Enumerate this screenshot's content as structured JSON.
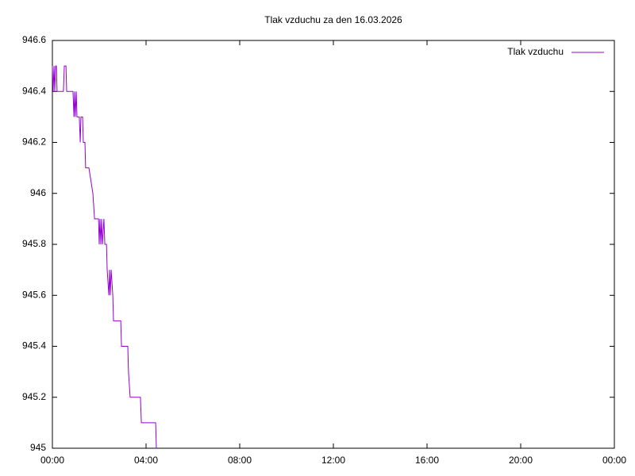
{
  "chart_data": {
    "type": "line",
    "title": "Tlak vzduchu za den 16.03.2026",
    "x": [
      0,
      0.03,
      0.07,
      0.1,
      0.14,
      0.17,
      0.2,
      0.47,
      0.51,
      0.58,
      0.61,
      0.88,
      0.92,
      0.95,
      0.98,
      1.02,
      1.05,
      1.15,
      1.19,
      1.22,
      1.29,
      1.32,
      1.39,
      1.42,
      1.56,
      1.73,
      1.8,
      1.97,
      2.0,
      2.03,
      2.07,
      2.1,
      2.14,
      2.2,
      2.24,
      2.31,
      2.34,
      2.41,
      2.44,
      2.47,
      2.51,
      2.58,
      2.61,
      2.68,
      2.92,
      2.95,
      3.22,
      3.25,
      3.32,
      3.76,
      3.8,
      4.41,
      4.44
    ],
    "series": [
      {
        "name": "Tlak vzduchu",
        "color": "#9400d3",
        "values": [
          946.5,
          946.4,
          946.5,
          946.4,
          946.5,
          946.5,
          946.4,
          946.4,
          946.5,
          946.5,
          946.4,
          946.4,
          946.3,
          946.4,
          946.3,
          946.4,
          946.3,
          946.3,
          946.2,
          946.3,
          946.3,
          946.2,
          946.2,
          946.1,
          946.1,
          946.0,
          945.9,
          945.9,
          945.8,
          945.9,
          945.8,
          945.9,
          945.8,
          945.9,
          945.8,
          945.8,
          945.7,
          945.6,
          945.7,
          945.6,
          945.7,
          945.6,
          945.5,
          945.5,
          945.5,
          945.4,
          945.4,
          945.3,
          945.2,
          945.2,
          945.1,
          945.1,
          945.0
        ]
      }
    ],
    "xlim": [
      0,
      24
    ],
    "xticks": [
      {
        "value": 0,
        "label": "00:00"
      },
      {
        "value": 4,
        "label": "04:00"
      },
      {
        "value": 8,
        "label": "08:00"
      },
      {
        "value": 12,
        "label": "12:00"
      },
      {
        "value": 16,
        "label": "16:00"
      },
      {
        "value": 20,
        "label": "20:00"
      },
      {
        "value": 24,
        "label": "00:00"
      }
    ],
    "ylim": [
      945,
      946.6
    ],
    "yticks": [
      945,
      945.2,
      945.4,
      945.6,
      945.8,
      946,
      946.2,
      946.4,
      946.6
    ],
    "legend": "top-right"
  }
}
